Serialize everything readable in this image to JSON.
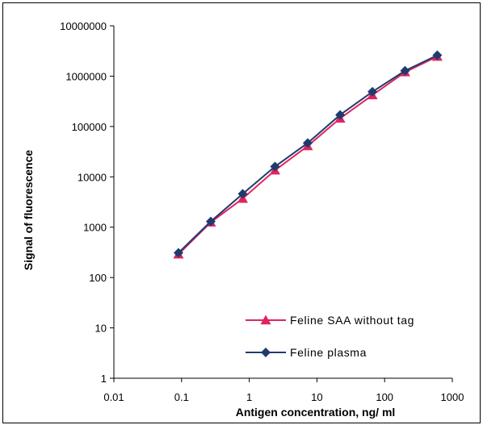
{
  "chart_data": {
    "type": "line",
    "xlabel": "Antigen concentration, ng/ ml",
    "ylabel": "Signal of fluorescence",
    "x_scale": "log",
    "y_scale": "log",
    "xlim": [
      0.01,
      1000
    ],
    "ylim": [
      1,
      10000000
    ],
    "x_ticks": [
      "0.01",
      "0.1",
      "1",
      "10",
      "100",
      "1000"
    ],
    "y_ticks": [
      "1",
      "10",
      "100",
      "1000",
      "10000",
      "100000",
      "1000000",
      "10000000"
    ],
    "grid": false,
    "legend_position": "bottom-right",
    "series": [
      {
        "name": "Feline SAA without tag",
        "color": "#e0245e",
        "marker": "triangle",
        "x": [
          0.09,
          0.27,
          0.8,
          2.4,
          7.3,
          22,
          66,
          200,
          600
        ],
        "y": [
          290,
          1250,
          3700,
          13500,
          41000,
          145000,
          420000,
          1200000,
          2450000
        ]
      },
      {
        "name": "Feline plasma",
        "color": "#1f3b6e",
        "marker": "diamond",
        "x": [
          0.09,
          0.27,
          0.8,
          2.4,
          7.3,
          22,
          66,
          200,
          600
        ],
        "y": [
          310,
          1300,
          4600,
          16000,
          47000,
          170000,
          490000,
          1280000,
          2600000
        ]
      }
    ]
  }
}
